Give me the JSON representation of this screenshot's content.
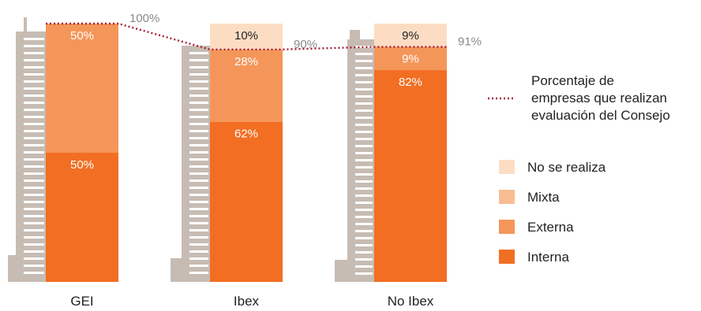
{
  "chart_data": {
    "type": "bar",
    "stacked": true,
    "ylim": [
      0,
      100
    ],
    "categories": [
      "GEI",
      "Ibex",
      "No Ibex"
    ],
    "series": [
      {
        "key": "interna",
        "name": "Interna",
        "color": "#F26E22",
        "values": [
          50,
          62,
          82
        ],
        "labels": [
          "50%",
          "62%",
          "82%"
        ]
      },
      {
        "key": "externa",
        "name": "Externa",
        "color": "#F49659",
        "values": [
          50,
          28,
          9
        ],
        "labels": [
          "50%",
          "28%",
          "9%"
        ]
      },
      {
        "key": "mixta",
        "name": "Mixta",
        "color": "#F8BD92",
        "values": [
          0,
          0,
          0
        ],
        "labels": [
          "",
          "",
          ""
        ]
      },
      {
        "key": "no_realiza",
        "name": "No se realiza",
        "color": "#FCDDC4",
        "values": [
          0,
          10,
          9
        ],
        "labels": [
          "",
          "10%",
          "9%"
        ]
      }
    ],
    "line": {
      "name": "Porcentaje de empresas que realizan evaluación del Consejo",
      "name_lines": [
        "Porcentaje de",
        "empresas que realizan",
        "evaluación del Consejo"
      ],
      "values": [
        100,
        90,
        91
      ],
      "labels": [
        "100%",
        "90%",
        "91%"
      ],
      "color": "#A31E35",
      "style": "dotted"
    },
    "legend_order": [
      "no_realiza",
      "mixta",
      "externa",
      "interna"
    ],
    "building_color": "#C7BCB3",
    "building_window_color": "#FFFFFF",
    "label_text_dark": "#222222",
    "label_text_light": "#FFFFFF",
    "annotation_color": "#8A8A8A"
  }
}
